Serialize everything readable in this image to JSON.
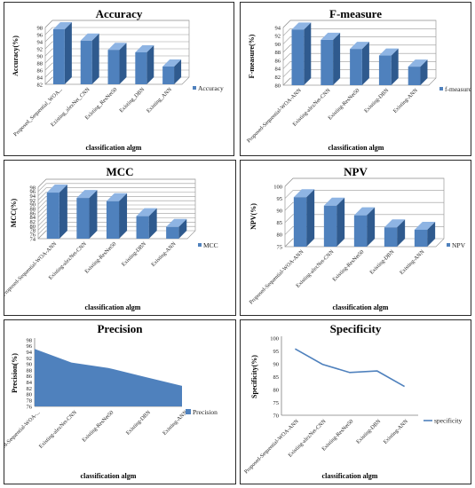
{
  "colors": {
    "bar_front": "#4f81bd",
    "bar_side": "#2f5a8e",
    "bar_top": "#8eb4e3",
    "area_fill": "#4f81bd",
    "line": "#4f81bd"
  },
  "chart_data": [
    {
      "id": "accuracy",
      "type": "bar",
      "style": "3d",
      "title": "Accuracy",
      "ylabel": "Accuracy(%)",
      "xlabel": "classification algm",
      "categories": [
        "Proposed_Sequential_WOA...",
        "Existing_alexNet_CNN",
        "Existing_ResNet50",
        "Existing_DBN",
        "Existing_ANN"
      ],
      "series": [
        {
          "name": "Accuracy",
          "values": [
            97.5,
            94.3,
            91.7,
            91.0,
            87.0
          ]
        }
      ],
      "ylim": [
        82,
        98
      ],
      "ystep": 2,
      "grid": true,
      "legend": "right"
    },
    {
      "id": "fmeasure",
      "type": "bar",
      "style": "3d",
      "title": "F-measure",
      "ylabel": "F-measure(%)",
      "xlabel": "classification algm",
      "categories": [
        "Proposed-Sequential-WOA-ANN",
        "Existing-alexNet-CNN",
        "Existing-ResNet50",
        "Existing-DBN",
        "Existing-ANN"
      ],
      "series": [
        {
          "name": "f-measure",
          "values": [
            93.5,
            91.0,
            88.8,
            87.2,
            84.5
          ]
        }
      ],
      "ylim": [
        80,
        94
      ],
      "ystep": 2,
      "grid": true,
      "legend": "right"
    },
    {
      "id": "mcc",
      "type": "bar",
      "style": "3d",
      "title": "MCC",
      "ylabel": "MCC(%)",
      "xlabel": "classification algm",
      "categories": [
        "Proposed-Sequential-WOA-ANN",
        "Existing-alexNet-CNN",
        "Existing-ResNet50",
        "Existing-DBN",
        "Existing-ANN"
      ],
      "series": [
        {
          "name": "MCC",
          "values": [
            95.5,
            93.0,
            91.5,
            84.5,
            79.5
          ]
        }
      ],
      "ylim": [
        74,
        98
      ],
      "ystep": 2,
      "grid": true,
      "legend": "right"
    },
    {
      "id": "npv",
      "type": "bar",
      "style": "3d",
      "title": "NPV",
      "ylabel": "NPV(%)",
      "xlabel": "classification algm",
      "categories": [
        "Proposed-Sequential-WOA-ANN",
        "Existing-alexNet-CNN",
        "Existing-ResNet50",
        "Existing-DBN",
        "Existing-ANN"
      ],
      "series": [
        {
          "name": "NPV",
          "values": [
            95.5,
            92.0,
            88.0,
            83.0,
            82.0
          ]
        }
      ],
      "ylim": [
        75,
        100
      ],
      "ystep": 5,
      "grid": true,
      "legend": "right"
    },
    {
      "id": "precision",
      "type": "area",
      "title": "Precision",
      "ylabel": "Precision(%)",
      "xlabel": "classification algm",
      "categories": [
        "Proposed-Sequential-WOA-...",
        "Existing-alexNet-CNN",
        "Existing-ResNet50",
        "Existing-DBN",
        "Existing-ANN"
      ],
      "series": [
        {
          "name": "Precision",
          "values": [
            95.0,
            90.5,
            88.7,
            85.7,
            82.8
          ]
        }
      ],
      "ylim": [
        76,
        98
      ],
      "ystep": 2,
      "grid": false,
      "legend": "right"
    },
    {
      "id": "specificity",
      "type": "line",
      "title": "Specificity",
      "ylabel": "Specificity(%)",
      "xlabel": "classification algm",
      "categories": [
        "Proposed-Sequential-WOA-ANN",
        "Existing-alexNet-CNN",
        "Existing-ResNet50",
        "Existing-DBN",
        "Existing-ANN"
      ],
      "series": [
        {
          "name": "specificity",
          "values": [
            95.8,
            89.8,
            86.6,
            87.2,
            81.2
          ]
        }
      ],
      "ylim": [
        70,
        100
      ],
      "ystep": 5,
      "grid": false,
      "legend": "right"
    }
  ]
}
